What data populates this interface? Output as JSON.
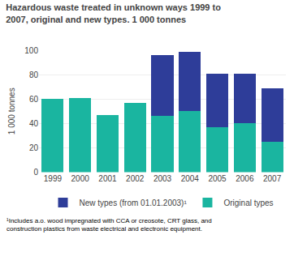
{
  "chart_data": {
    "type": "bar",
    "title": "Hazardous waste treated in unknown ways 1999 to\n2007, original and new types. 1 000 tonnes",
    "ylabel": "1 000 tonnes",
    "categories": [
      "1999",
      "2000",
      "2001",
      "2002",
      "2003",
      "2004",
      "2005",
      "2006",
      "2007"
    ],
    "series": [
      {
        "name": "Original types",
        "color": "#1ab5a0",
        "values": [
          60,
          61,
          47,
          57,
          46,
          50,
          37,
          40,
          25
        ]
      },
      {
        "name": "New types (from 01.01.2003)¹",
        "color": "#2e3d99",
        "values": [
          0,
          0,
          0,
          0,
          50,
          49,
          44,
          41,
          44
        ]
      }
    ],
    "stacked": true,
    "ylim": [
      0,
      100
    ],
    "yticks": [
      0,
      20,
      40,
      60,
      80,
      100
    ],
    "grid": true,
    "legend": "bottom",
    "annotations": [
      "¹Includes a.o. wood impregnated with CCA or creosote, CRT glass, and\nconstruction plastics from waste electrical and electronic equipment."
    ]
  }
}
